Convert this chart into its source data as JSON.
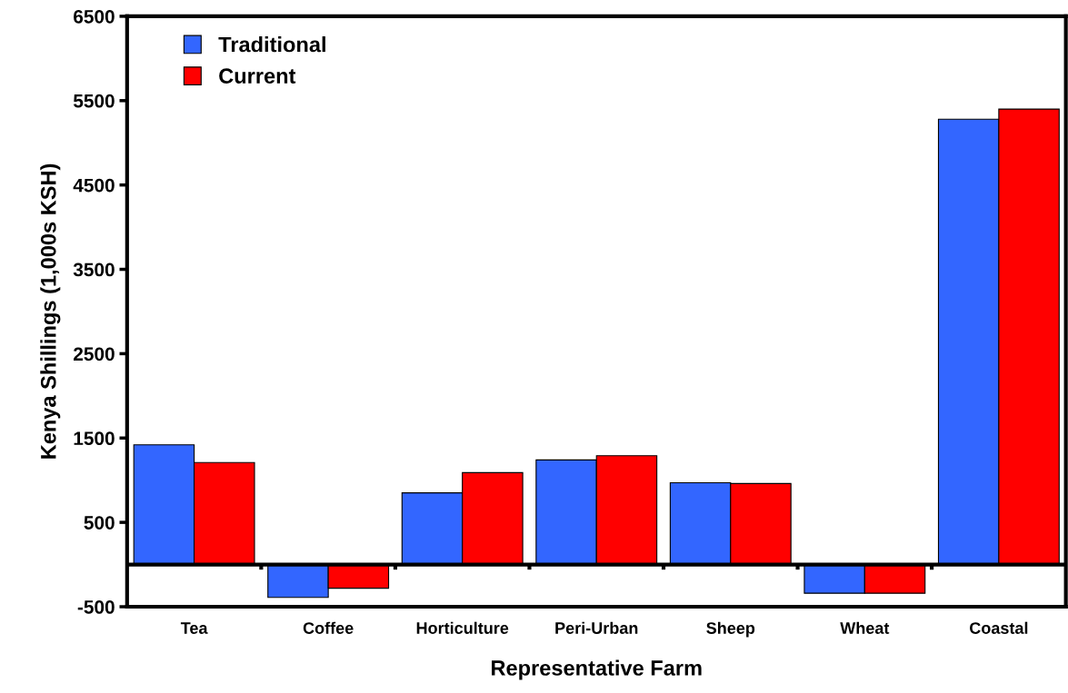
{
  "chart_data": {
    "type": "bar",
    "xlabel": "Representative Farm",
    "ylabel": "Kenya Shillings (1,000s KSH)",
    "categories": [
      "Tea",
      "Coffee",
      "Horticulture",
      "Peri-Urban",
      "Sheep",
      "Wheat",
      "Coastal"
    ],
    "series": [
      {
        "name": "Traditional",
        "color": "#3366ff",
        "values": [
          1420,
          -390,
          850,
          1240,
          970,
          -340,
          5280
        ]
      },
      {
        "name": "Current",
        "color": "#ff0000",
        "values": [
          1210,
          -280,
          1090,
          1290,
          960,
          -340,
          5400
        ]
      }
    ],
    "ylim": [
      -500,
      6500
    ],
    "yticks": [
      -500,
      500,
      1500,
      2500,
      3500,
      4500,
      5500,
      6500
    ],
    "grid": false,
    "legend": "top left"
  }
}
